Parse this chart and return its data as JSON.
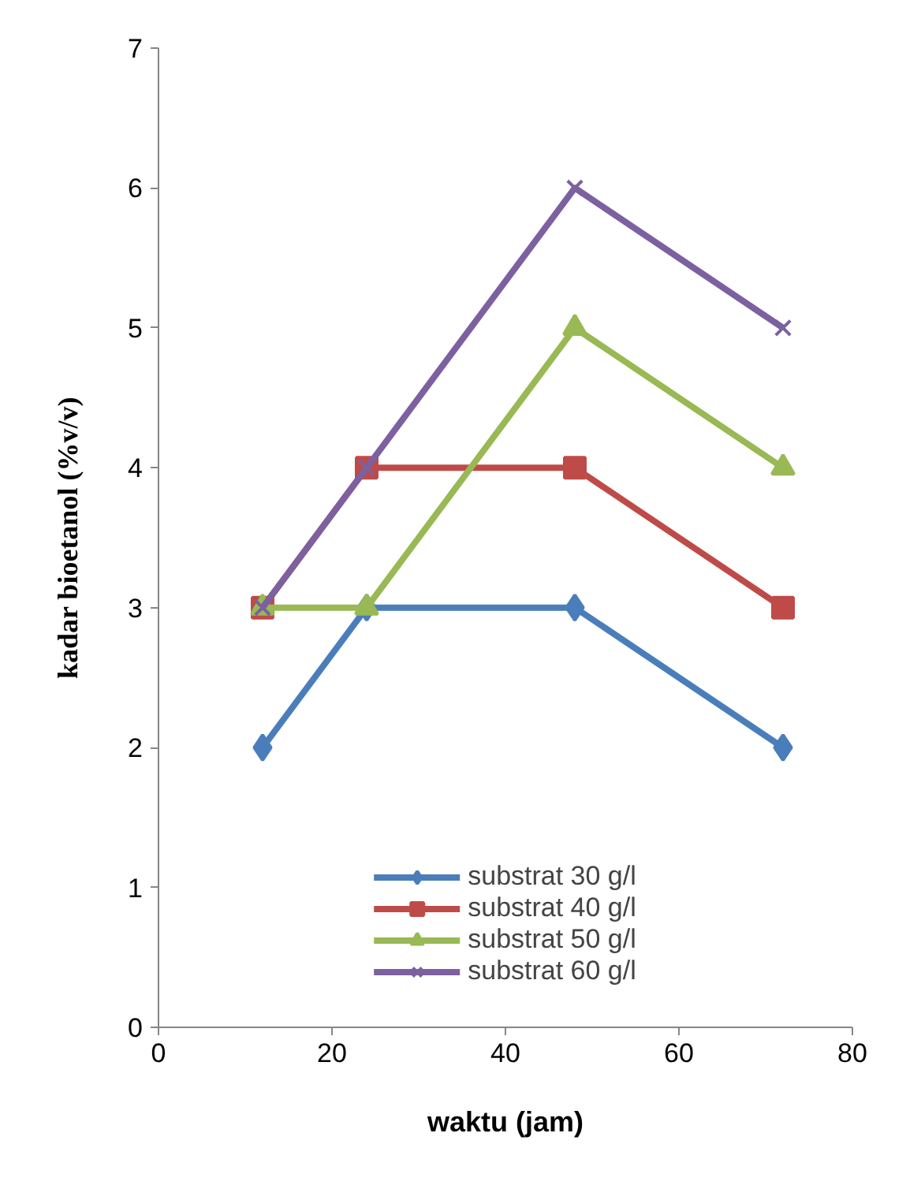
{
  "chart_data": {
    "type": "line",
    "xlabel": "waktu (jam)",
    "ylabel": "kadar bioetanol (%v/v)",
    "x": [
      12,
      24,
      48,
      72
    ],
    "series": [
      {
        "name": "substrat 30 g/l",
        "color": "#4a7ebb",
        "marker": "diamond",
        "values": [
          2,
          3,
          3,
          2
        ]
      },
      {
        "name": "substrat 40 g/l",
        "color": "#be4b48",
        "marker": "square",
        "values": [
          3,
          4,
          4,
          3
        ]
      },
      {
        "name": "substrat 50 g/l",
        "color": "#98b954",
        "marker": "triangle",
        "values": [
          3,
          3,
          5,
          4
        ]
      },
      {
        "name": "substrat 60 g/l",
        "color": "#7d60a0",
        "marker": "cross",
        "values": [
          3,
          4,
          6,
          5
        ]
      }
    ],
    "xlim": [
      0,
      80
    ],
    "xticks": [
      0,
      20,
      40,
      60,
      80
    ],
    "ylim": [
      0,
      7
    ],
    "yticks": [
      0,
      1,
      2,
      3,
      4,
      5,
      6,
      7
    ],
    "grid": false,
    "legend": "bottom",
    "line_style": "solid"
  }
}
